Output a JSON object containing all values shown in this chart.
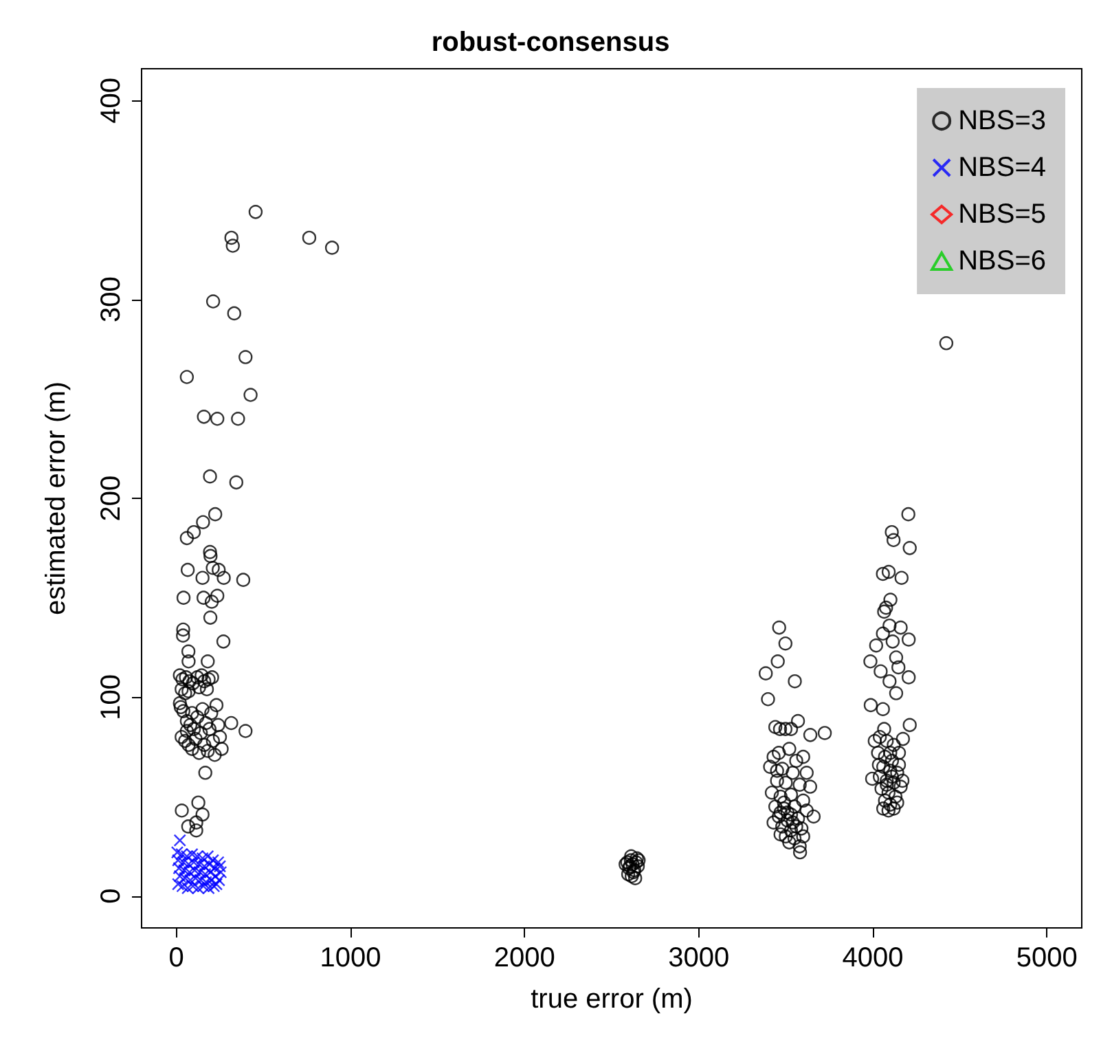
{
  "chart_data": {
    "type": "scatter",
    "title": "robust-consensus",
    "xlabel": "true error (m)",
    "ylabel": "estimated error (m)",
    "xlim": [
      -200,
      5200
    ],
    "xticks": [
      0,
      1000,
      2000,
      3000,
      4000,
      5000
    ],
    "ylim": [
      -16,
      416
    ],
    "yticks": [
      0,
      100,
      200,
      300,
      400
    ],
    "grid": false,
    "legend": "top right",
    "series": [
      {
        "name": "NBS=3",
        "color": "#000000",
        "marker": "circle",
        "x": [
          455,
          316,
          324,
          763,
          894,
          211,
          332,
          397,
          60,
          426,
          158,
          235,
          354,
          193,
          344,
          223,
          153,
          100,
          60,
          193,
          196,
          65,
          150,
          209,
          243,
          272,
          384,
          41,
          156,
          235,
          203,
          195,
          39,
          38,
          270,
          69,
          70,
          180,
          20,
          35,
          55,
          75,
          95,
          120,
          145,
          160,
          185,
          205,
          30,
          70,
          130,
          175,
          50,
          20,
          25,
          40,
          90,
          150,
          200,
          230,
          60,
          80,
          100,
          120,
          170,
          315,
          397,
          190,
          240,
          30,
          50,
          70,
          110,
          140,
          160,
          210,
          250,
          90,
          130,
          180,
          220,
          260,
          60,
          166,
          126,
          31,
          150,
          114,
          68,
          114,
          2590,
          2600,
          2610,
          2620,
          2630,
          2640,
          2650,
          2595,
          2615,
          2625,
          2645,
          2605,
          2635,
          2580,
          2655,
          2612,
          3462,
          3498,
          3454,
          3385,
          3552,
          3398,
          3467,
          3498,
          3570,
          3641,
          3724,
          3530,
          3440,
          3430,
          3460,
          3520,
          3560,
          3600,
          3410,
          3480,
          3540,
          3620,
          3450,
          3500,
          3580,
          3640,
          3420,
          3470,
          3530,
          3600,
          3440,
          3490,
          3550,
          3620,
          3460,
          3510,
          3570,
          3430,
          3480,
          3530,
          3590,
          3500,
          3550,
          3470,
          3520,
          3580,
          3582,
          3510,
          3540,
          3490,
          3450,
          3600,
          3660,
          3470,
          3530,
          3560,
          4204,
          4109,
          4119,
          4212,
          4058,
          4091,
          4165,
          4101,
          4065,
          4076,
          4096,
          4160,
          4206,
          4114,
          4058,
          4019,
          4134,
          3986,
          4147,
          4045,
          4206,
          4096,
          4134,
          3988,
          4058,
          4212,
          4065,
          4011,
          4173,
          3996,
          4040,
          4080,
          4120,
          4150,
          4030,
          4070,
          4110,
          4060,
          4100,
          4140,
          4040,
          4080,
          4120,
          4160,
          4050,
          4090,
          4130,
          4070,
          4100,
          4140,
          4060,
          4090,
          4120,
          4080,
          4110,
          4150,
          4035,
          4100,
          4170,
          4422
        ],
        "values": [
          344,
          331,
          327,
          331,
          326,
          299,
          293,
          271,
          261,
          252,
          241,
          240,
          240,
          211,
          208,
          192,
          188,
          183,
          180,
          173,
          171,
          164,
          160,
          165,
          164,
          160,
          159,
          150,
          150,
          151,
          148,
          140,
          134,
          131,
          128,
          123,
          118,
          118,
          111,
          109,
          110,
          108,
          107,
          110,
          111,
          108,
          109,
          110,
          104,
          103,
          105,
          104,
          102,
          97,
          95,
          93,
          92,
          94,
          92,
          96,
          88,
          86,
          84,
          90,
          87,
          87,
          83,
          84,
          86,
          80,
          78,
          76,
          79,
          82,
          76,
          78,
          80,
          74,
          72,
          73,
          71,
          74,
          83,
          62,
          47,
          43,
          41,
          37,
          35,
          33,
          17,
          14,
          18,
          16,
          13,
          17,
          15,
          11,
          10,
          12,
          19,
          15,
          9,
          16,
          18,
          20,
          135,
          127,
          118,
          112,
          108,
          99,
          84,
          84,
          88,
          81,
          82,
          84,
          85,
          70,
          72,
          74,
          68,
          70,
          65,
          64,
          62,
          62,
          58,
          57,
          56,
          55,
          52,
          50,
          51,
          48,
          45,
          44,
          45,
          43,
          40,
          38,
          39,
          37,
          35,
          33,
          34,
          30,
          29,
          31,
          27,
          25,
          22,
          42,
          37,
          47,
          63,
          30,
          40,
          42,
          41,
          35,
          192,
          183,
          179,
          175,
          162,
          163,
          160,
          149,
          143,
          145,
          136,
          135,
          129,
          128,
          132,
          126,
          120,
          118,
          115,
          113,
          110,
          108,
          102,
          96,
          94,
          86,
          84,
          78,
          79,
          59,
          80,
          78,
          76,
          72,
          72,
          70,
          68,
          65,
          63,
          62,
          60,
          58,
          57,
          55,
          54,
          52,
          50,
          48,
          46,
          47,
          44,
          43,
          44,
          56,
          60,
          66,
          66,
          72,
          58,
          278
        ]
      },
      {
        "name": "NBS=4",
        "color": "#0000ff",
        "marker": "cross",
        "x": [
          20,
          5,
          30,
          60,
          90,
          120,
          150,
          180,
          210,
          240,
          10,
          40,
          70,
          100,
          130,
          160,
          190,
          220,
          250,
          15,
          45,
          75,
          105,
          135,
          165,
          195,
          225,
          20,
          50,
          80,
          110,
          140,
          170,
          200,
          230,
          10,
          35,
          65,
          95,
          125,
          155,
          185,
          215,
          245,
          255
        ],
        "values": [
          28,
          22,
          21,
          20,
          21,
          20,
          19,
          20,
          18,
          17,
          18,
          17,
          16,
          17,
          16,
          15,
          16,
          14,
          15,
          14,
          13,
          12,
          13,
          12,
          11,
          12,
          10,
          10,
          9,
          8,
          9,
          8,
          7,
          8,
          6,
          6,
          5,
          4,
          5,
          4,
          5,
          4,
          5,
          8,
          12
        ]
      },
      {
        "name": "NBS=5",
        "color": "#ff0000",
        "marker": "diamond"
      },
      {
        "name": "NBS=6",
        "color": "#00cd00",
        "marker": "triangle"
      }
    ]
  }
}
